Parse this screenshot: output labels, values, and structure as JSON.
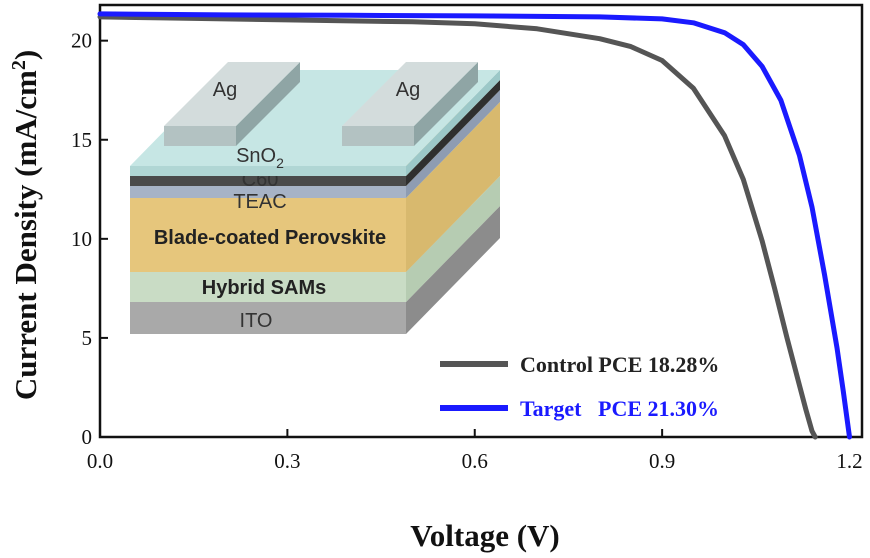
{
  "chart_data": {
    "type": "line",
    "xlabel": "Voltage (V)",
    "ylabel": "Current Density (mA/cm²)",
    "xlim": [
      0,
      1.22
    ],
    "ylim": [
      0,
      21.8
    ],
    "x_ticks": [
      "0.0",
      "0.3",
      "0.6",
      "0.9",
      "1.2"
    ],
    "y_ticks": [
      "0",
      "5",
      "10",
      "15",
      "20"
    ],
    "grid": false,
    "legend_position": "bottom-right",
    "series": [
      {
        "name": "Control PCE 18.28%",
        "color": "#555555",
        "x": [
          0,
          0.1,
          0.2,
          0.3,
          0.4,
          0.5,
          0.6,
          0.7,
          0.8,
          0.85,
          0.9,
          0.95,
          1.0,
          1.03,
          1.06,
          1.08,
          1.1,
          1.12,
          1.13,
          1.14,
          1.145
        ],
        "y": [
          21.2,
          21.15,
          21.1,
          21.05,
          21.0,
          20.95,
          20.85,
          20.6,
          20.1,
          19.7,
          19.0,
          17.6,
          15.2,
          13.0,
          9.9,
          7.5,
          5.0,
          2.6,
          1.4,
          0.3,
          0
        ]
      },
      {
        "name": "Target   PCE 21.30%",
        "color": "#1a1aff",
        "x": [
          0,
          0.2,
          0.4,
          0.6,
          0.8,
          0.9,
          0.95,
          1.0,
          1.03,
          1.06,
          1.09,
          1.12,
          1.14,
          1.16,
          1.18,
          1.19,
          1.2
        ],
        "y": [
          21.35,
          21.3,
          21.28,
          21.25,
          21.2,
          21.1,
          20.9,
          20.4,
          19.8,
          18.7,
          17.0,
          14.2,
          11.6,
          8.2,
          4.5,
          2.3,
          0
        ]
      }
    ],
    "inset_layers": {
      "electrodes": [
        "Ag",
        "Ag"
      ],
      "sno2": "SnO",
      "sno2_sub": "2",
      "c60": "C60",
      "teac": "TEAC",
      "perovskite": "Blade-coated Perovskite",
      "sams": "Hybrid SAMs",
      "ito": "ITO"
    }
  }
}
